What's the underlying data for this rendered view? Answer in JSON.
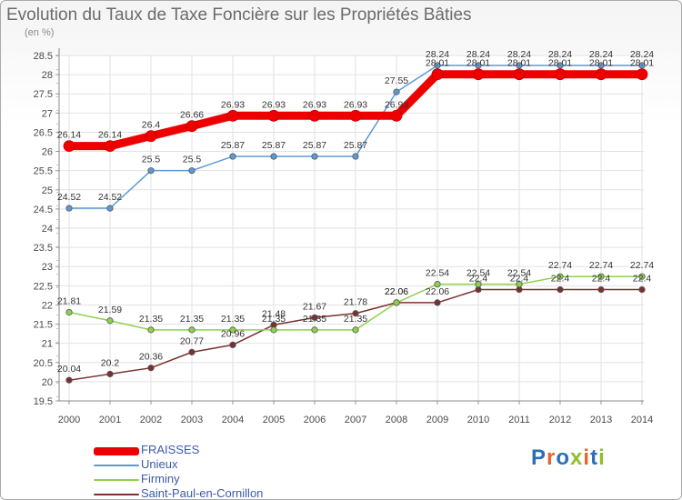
{
  "title": "Evolution du Taux de Taxe Foncière sur les Propriétés Bâties",
  "unit_label": "(en %)",
  "logo": {
    "text": "Proxiti",
    "letter_colors": [
      "#2d6fb5",
      "#e8632b",
      "#2d6fb5",
      "#8fbf2f",
      "#e8632b",
      "#2d6fb5",
      "#8fbf2f"
    ]
  },
  "chart_data": {
    "type": "line",
    "x": [
      "2000",
      "2001",
      "2002",
      "2003",
      "2004",
      "2005",
      "2006",
      "2007",
      "2008",
      "2009",
      "2010",
      "2011",
      "2012",
      "2013",
      "2014"
    ],
    "ylim": [
      19.5,
      28.5
    ],
    "y_ticks": [
      "19.5",
      "20",
      "20.5",
      "21",
      "21.5",
      "22",
      "22.5",
      "23",
      "23.5",
      "24",
      "24.5",
      "25",
      "25.5",
      "26",
      "26.5",
      "27",
      "27.5",
      "28",
      "28.5"
    ],
    "grid": true,
    "legend_position": "bottom-left",
    "series": [
      {
        "name": "FRAISSES",
        "color": "#ee0000",
        "values": [
          26.14,
          26.14,
          26.4,
          26.66,
          26.93,
          26.93,
          26.93,
          26.93,
          26.93,
          28.01,
          28.01,
          28.01,
          28.01,
          28.01,
          28.01
        ],
        "labels": [
          "26.14",
          "26.14",
          "26.4",
          "26.66",
          "26.93",
          "26.93",
          "26.93",
          "26.93",
          "26.93",
          "28.01",
          "28.01",
          "28.01",
          "28.01",
          "28.01",
          "28.01"
        ]
      },
      {
        "name": "Unieux",
        "color": "#5b9bd5",
        "values": [
          24.52,
          24.52,
          25.5,
          25.5,
          25.87,
          25.87,
          25.87,
          25.87,
          27.55,
          28.24,
          28.24,
          28.24,
          28.24,
          28.24,
          28.24
        ],
        "labels": [
          "24.52",
          "24.52",
          "25.5",
          "25.5",
          "25.87",
          "25.87",
          "25.87",
          "25.87",
          "27.55",
          "28.24",
          "28.24",
          "28.24",
          "28.24",
          "28.24",
          "28.24"
        ]
      },
      {
        "name": "Firminy",
        "color": "#8fd14f",
        "values": [
          21.81,
          21.59,
          21.35,
          21.35,
          21.35,
          21.35,
          21.35,
          21.35,
          22.06,
          22.54,
          22.54,
          22.54,
          22.74,
          22.74,
          22.74
        ],
        "labels": [
          "21.81",
          "21.59",
          "21.35",
          "21.35",
          "21.35",
          "21.35",
          "21.35",
          "21.35",
          "22.06",
          "22.54",
          "22.54",
          "22.54",
          "22.74",
          "22.74",
          "22.74"
        ]
      },
      {
        "name": "Saint-Paul-en-Cornillon",
        "color": "#7a3030",
        "values": [
          20.04,
          20.2,
          20.36,
          20.77,
          20.96,
          21.48,
          21.67,
          21.78,
          22.06,
          22.06,
          22.4,
          22.4,
          22.4,
          22.4,
          22.4
        ],
        "labels": [
          "20.04",
          "20.2",
          "20.36",
          "20.77",
          "20.96",
          "21.48",
          "21.67",
          "21.78",
          "22.06",
          "22.06",
          "22.4",
          "22.4",
          "22.4",
          "22.4",
          "22.4"
        ]
      }
    ]
  }
}
